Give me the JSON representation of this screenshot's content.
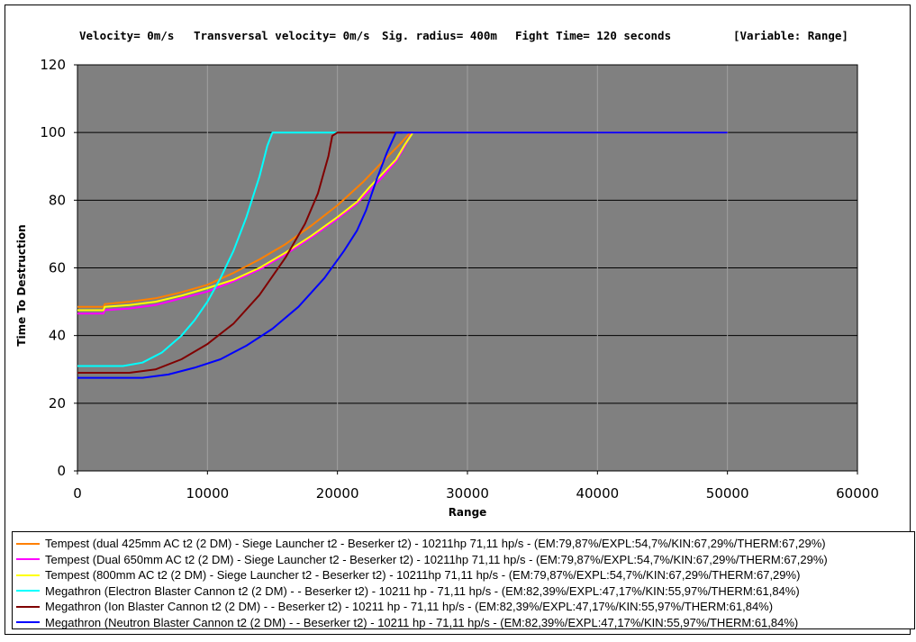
{
  "header": {
    "velocity": "Velocity= 0m/s",
    "transversal": "Transversal velocity= 0m/s",
    "sig_radius": "Sig. radius= 400m",
    "fight_time": "Fight Time= 120 seconds",
    "variable": "[Variable: Range]"
  },
  "chart_data": {
    "type": "line",
    "title": "",
    "xlabel": "Range",
    "ylabel": "Time To Destruction",
    "xlim": [
      0,
      60000
    ],
    "ylim": [
      0,
      120
    ],
    "xticks": [
      "0",
      "10000",
      "20000",
      "30000",
      "40000",
      "50000",
      "60000"
    ],
    "yticks": [
      "0",
      "20",
      "40",
      "60",
      "80",
      "100",
      "120"
    ],
    "grid": true,
    "plot_background": "#808080",
    "legend_position": "bottom",
    "series": [
      {
        "name": "Tempest (dual 425mm AC t2 (2 DM)  - Siege Launcher t2 - Beserker t2)  - 10211hp 71,11 hp/s - (EM:79,87%/EXPL:54,7%/KIN:67,29%/THERM:67,29%)",
        "color": "#FF8000",
        "points": [
          [
            0,
            48.5
          ],
          [
            2000,
            48.5
          ],
          [
            2100,
            49.3
          ],
          [
            4000,
            50
          ],
          [
            6000,
            51
          ],
          [
            8000,
            52.8
          ],
          [
            10000,
            55
          ],
          [
            12000,
            58.5
          ],
          [
            14000,
            62.5
          ],
          [
            16000,
            67
          ],
          [
            18000,
            72.5
          ],
          [
            20000,
            78.5
          ],
          [
            22000,
            85.5
          ],
          [
            23500,
            91.5
          ],
          [
            24800,
            96.5
          ],
          [
            25600,
            100
          ],
          [
            50000,
            100
          ]
        ]
      },
      {
        "name": "Tempest (Dual 650mm AC t2 (2 DM)  - Siege Launcher t2 - Beserker t2)  - 10211hp 71,11 hp/s - (EM:79,87%/EXPL:54,7%/KIN:67,29%/THERM:67,29%)",
        "color": "#FF00FF",
        "points": [
          [
            0,
            46.5
          ],
          [
            2000,
            46.5
          ],
          [
            2100,
            47.5
          ],
          [
            4000,
            48
          ],
          [
            6000,
            49
          ],
          [
            8000,
            51
          ],
          [
            10000,
            53
          ],
          [
            12000,
            56
          ],
          [
            14000,
            59.5
          ],
          [
            16000,
            64
          ],
          [
            18000,
            69
          ],
          [
            20000,
            74.5
          ],
          [
            21500,
            79
          ],
          [
            22500,
            83
          ],
          [
            23500,
            87
          ],
          [
            24500,
            91.5
          ],
          [
            25200,
            96
          ],
          [
            25700,
            100
          ],
          [
            50000,
            100
          ]
        ]
      },
      {
        "name": "Tempest (800mm AC t2 (2 DM)  - Siege Launcher t2 - Beserker t2)  - 10211hp 71,11 hp/s - (EM:79,87%/EXPL:54,7%/KIN:67,29%/THERM:67,29%)",
        "color": "#FFFF00",
        "points": [
          [
            0,
            47.5
          ],
          [
            2000,
            47.5
          ],
          [
            2100,
            48.5
          ],
          [
            4000,
            49
          ],
          [
            6000,
            50
          ],
          [
            8000,
            51.8
          ],
          [
            10000,
            54
          ],
          [
            12000,
            56.5
          ],
          [
            14000,
            60
          ],
          [
            16000,
            64.5
          ],
          [
            18000,
            69.5
          ],
          [
            20000,
            75
          ],
          [
            21500,
            79.5
          ],
          [
            22500,
            84
          ],
          [
            23500,
            88
          ],
          [
            24500,
            92
          ],
          [
            25200,
            96.5
          ],
          [
            25800,
            100
          ],
          [
            50000,
            100
          ]
        ]
      },
      {
        "name": "Megathron (Electron Blaster Cannon t2 (2 DM)  -  - Beserker t2)  - 10211 hp - 71,11 hp/s - (EM:82,39%/EXPL:47,17%/KIN:55,97%/THERM:61,84%)",
        "color": "#00FFFF",
        "points": [
          [
            0,
            31
          ],
          [
            3500,
            31
          ],
          [
            5000,
            32
          ],
          [
            6500,
            35
          ],
          [
            8000,
            40
          ],
          [
            9000,
            44.5
          ],
          [
            10000,
            50
          ],
          [
            11000,
            57
          ],
          [
            12000,
            65
          ],
          [
            13000,
            75
          ],
          [
            14000,
            87
          ],
          [
            14600,
            96
          ],
          [
            15000,
            100
          ],
          [
            20000,
            100
          ]
        ]
      },
      {
        "name": "Megathron (Ion Blaster Cannon t2 (2 DM)  -  - Beserker t2)  - 10211 hp - 71,11 hp/s - (EM:82,39%/EXPL:47,17%/KIN:55,97%/THERM:61,84%)",
        "color": "#800000",
        "points": [
          [
            0,
            29
          ],
          [
            4000,
            29
          ],
          [
            6000,
            30
          ],
          [
            8000,
            33
          ],
          [
            10000,
            37.5
          ],
          [
            12000,
            43.5
          ],
          [
            14000,
            52
          ],
          [
            16000,
            63
          ],
          [
            17500,
            73
          ],
          [
            18500,
            82
          ],
          [
            19300,
            93
          ],
          [
            19600,
            99
          ],
          [
            20000,
            100
          ],
          [
            25000,
            100
          ]
        ]
      },
      {
        "name": "Megathron (Neutron Blaster Cannon t2 (2 DM)  -  - Beserker t2)  - 10211 hp - 71,11 hp/s - (EM:82,39%/EXPL:47,17%/KIN:55,97%/THERM:61,84%)",
        "color": "#0000FF",
        "points": [
          [
            0,
            27.5
          ],
          [
            5000,
            27.5
          ],
          [
            7000,
            28.5
          ],
          [
            9000,
            30.5
          ],
          [
            11000,
            33
          ],
          [
            13000,
            37
          ],
          [
            15000,
            42
          ],
          [
            17000,
            48.5
          ],
          [
            19000,
            57
          ],
          [
            20500,
            65
          ],
          [
            21500,
            71
          ],
          [
            22200,
            77
          ],
          [
            23000,
            86
          ],
          [
            23800,
            94
          ],
          [
            24500,
            100
          ],
          [
            50000,
            100
          ]
        ]
      }
    ]
  }
}
